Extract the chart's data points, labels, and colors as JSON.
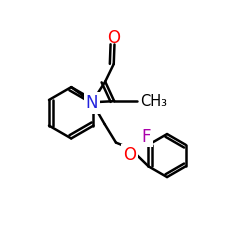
{
  "bg_color": "#ffffff",
  "bond_color": "#000000",
  "bond_lw": 1.8,
  "figsize": [
    2.5,
    2.5
  ],
  "dpi": 100,
  "colors": {
    "O": "#ff0000",
    "N": "#2222dd",
    "F": "#aa00aa",
    "C": "#000000"
  }
}
